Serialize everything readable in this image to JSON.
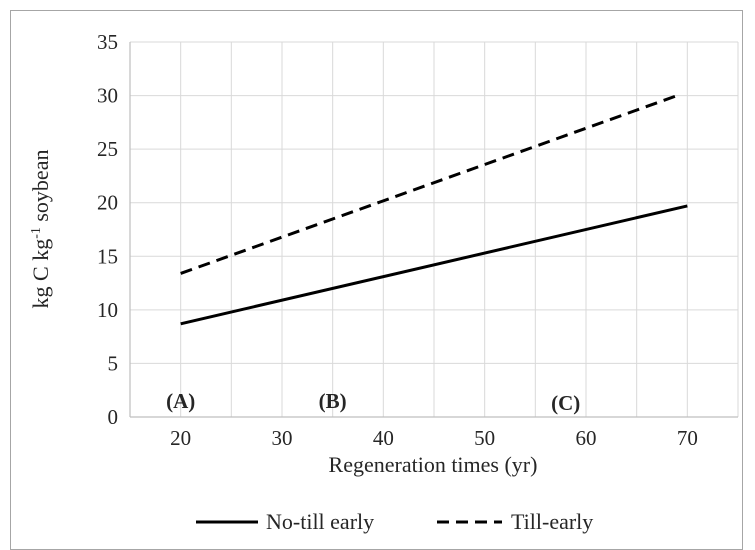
{
  "chart_data": {
    "type": "line",
    "xlabel": "Regeneration times (yr)",
    "ylabel": "kg C kg",
    "ylabel_sup": "-1",
    "ylabel_tail": " soybean",
    "xlim": [
      15,
      75
    ],
    "ylim": [
      0,
      35
    ],
    "xticks": [
      "20",
      "30",
      "40",
      "50",
      "60",
      "70"
    ],
    "yticks": [
      "0",
      "5",
      "10",
      "15",
      "20",
      "25",
      "30",
      "35"
    ],
    "grid": true,
    "legend_position": "bottom",
    "series": [
      {
        "name": "No-till early",
        "style": "solid",
        "color": "#000000",
        "x": [
          20,
          70
        ],
        "y": [
          8.7,
          19.7
        ]
      },
      {
        "name": "Till-early",
        "style": "dashed",
        "color": "#000000",
        "x": [
          20,
          69
        ],
        "y": [
          13.4,
          30.0
        ]
      }
    ],
    "annotations": [
      {
        "text": "(A)",
        "x": 20,
        "y": 1.5
      },
      {
        "text": "(B)",
        "x": 35,
        "y": 1.5
      },
      {
        "text": "(C)",
        "x": 58,
        "y": 1.3
      }
    ]
  }
}
